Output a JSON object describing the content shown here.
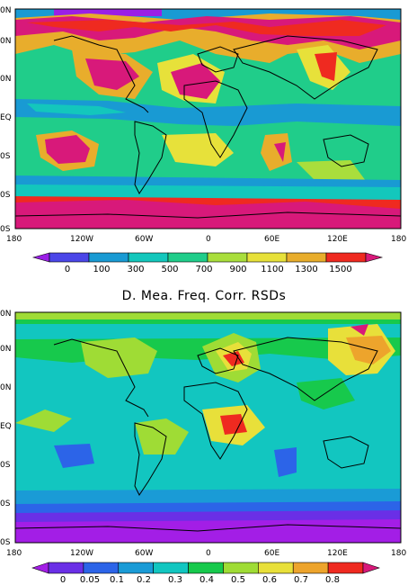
{
  "panel_top": {
    "lat_labels": [
      "0N",
      "0N",
      "0N",
      "EQ",
      "0S",
      "0S",
      "0S"
    ],
    "lon_labels": [
      "180",
      "120W",
      "60W",
      "0",
      "60E",
      "120E",
      "180"
    ],
    "colorbar_ticks": [
      "0",
      "100",
      "300",
      "500",
      "700",
      "900",
      "1100",
      "1300",
      "1500"
    ],
    "colorbar_colors": [
      "#9a1fe6",
      "#4b46e8",
      "#199ad3",
      "#13c7bc",
      "#20cd8a",
      "#a9de3c",
      "#e7e13a",
      "#e8ad2c",
      "#ef2a20",
      "#d8197a"
    ]
  },
  "panel_bottom": {
    "title": "D. Mea. Freq. Corr. RSDs",
    "lat_labels": [
      "0N",
      "0N",
      "0N",
      "EQ",
      "0S",
      "0S",
      "0S"
    ],
    "lon_labels": [
      "180",
      "120W",
      "60W",
      "0",
      "60E",
      "120E",
      "180"
    ],
    "colorbar_ticks": [
      "0",
      "0.05",
      "0.1",
      "0.2",
      "0.3",
      "0.4",
      "0.5",
      "0.6",
      "0.7",
      "0.8"
    ],
    "colorbar_colors": [
      "#a31ee6",
      "#6a2fe6",
      "#2c64e8",
      "#1a9bd6",
      "#12c6c0",
      "#17c94c",
      "#9fdc35",
      "#e8e03a",
      "#eda42c",
      "#ef2a20",
      "#d8197a"
    ]
  }
}
